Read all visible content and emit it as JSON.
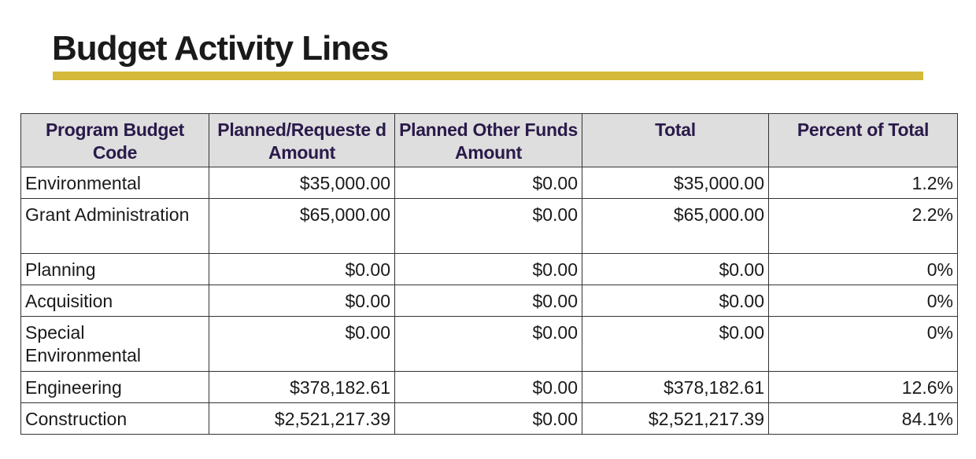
{
  "title": "Budget Activity Lines",
  "accent_color": "#d4b93a",
  "table": {
    "headers": [
      "Program Budget Code",
      "Planned/Requeste d Amount",
      "Planned Other Funds Amount",
      "Total",
      "Percent of Total"
    ],
    "rows": [
      [
        "Environmental",
        "$35,000.00",
        "$0.00",
        "$35,000.00",
        "1.2%"
      ],
      [
        "Grant Administration",
        "$65,000.00",
        "$0.00",
        "$65,000.00",
        "2.2%"
      ],
      [
        "Planning",
        "$0.00",
        "$0.00",
        "$0.00",
        "0%"
      ],
      [
        "Acquisition",
        "$0.00",
        "$0.00",
        "$0.00",
        "0%"
      ],
      [
        "Special Environmental",
        "$0.00",
        "$0.00",
        "$0.00",
        "0%"
      ],
      [
        "Engineering",
        "$378,182.61",
        "$0.00",
        "$378,182.61",
        "12.6%"
      ],
      [
        "Construction",
        "$2,521,217.39",
        "$0.00",
        "$2,521,217.39",
        "84.1%"
      ]
    ]
  }
}
